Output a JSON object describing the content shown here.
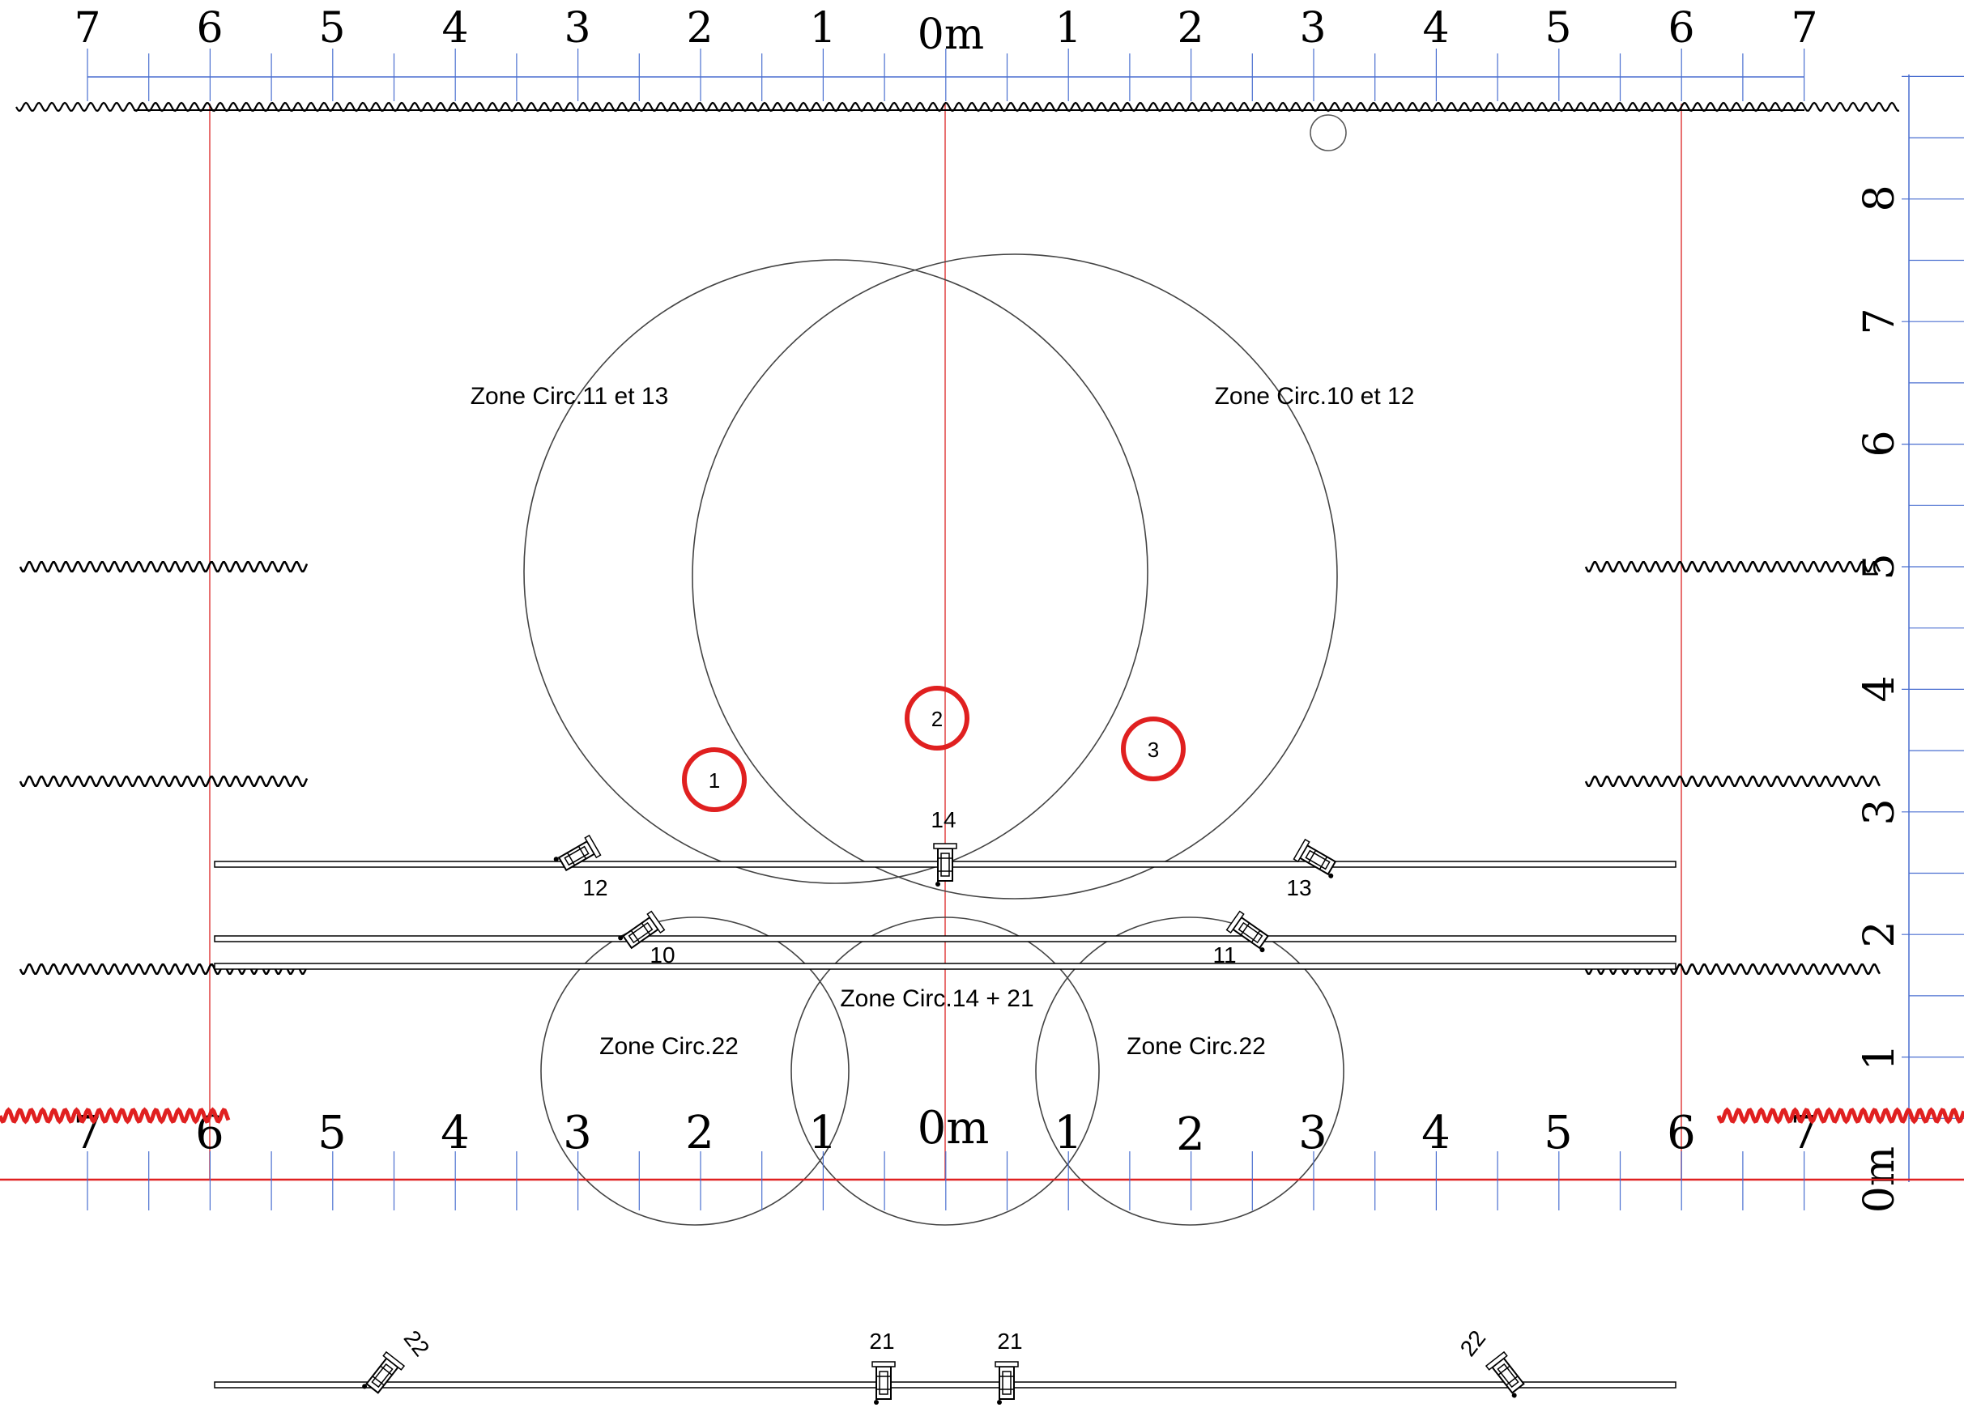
{
  "top_ruler": {
    "ticks": [
      "7",
      "6",
      "5",
      "4",
      "3",
      "2",
      "1",
      "0m",
      "1",
      "2",
      "3",
      "4",
      "5",
      "6",
      "7"
    ]
  },
  "bottom_ruler": {
    "ticks": [
      "7",
      "6",
      "5",
      "4",
      "3",
      "2",
      "1",
      "0m",
      "1",
      "2",
      "3",
      "4",
      "5",
      "6",
      "7"
    ]
  },
  "right_ruler": {
    "ticks": [
      "0m",
      "1",
      "2",
      "3",
      "4",
      "5",
      "6",
      "7",
      "8"
    ]
  },
  "zones": {
    "z11_13": "Zone Circ.11 et 13",
    "z10_12": "Zone Circ.10 et 12",
    "z14_21": "Zone Circ.14 + 21",
    "z22_left": "Zone Circ.22",
    "z22_right": "Zone Circ.22"
  },
  "markers": [
    "1",
    "2",
    "3"
  ],
  "fixtures": {
    "f12": "12",
    "f14": "14",
    "f13": "13",
    "f10": "10",
    "f11": "11",
    "f22_left": "22",
    "f21_a": "21",
    "f21_b": "21",
    "f22_right": "22"
  },
  "colors": {
    "accent_red": "#e02020",
    "guide_red": "#e04040",
    "ruler_blue": "#4a6fd0",
    "ink": "#000000"
  }
}
